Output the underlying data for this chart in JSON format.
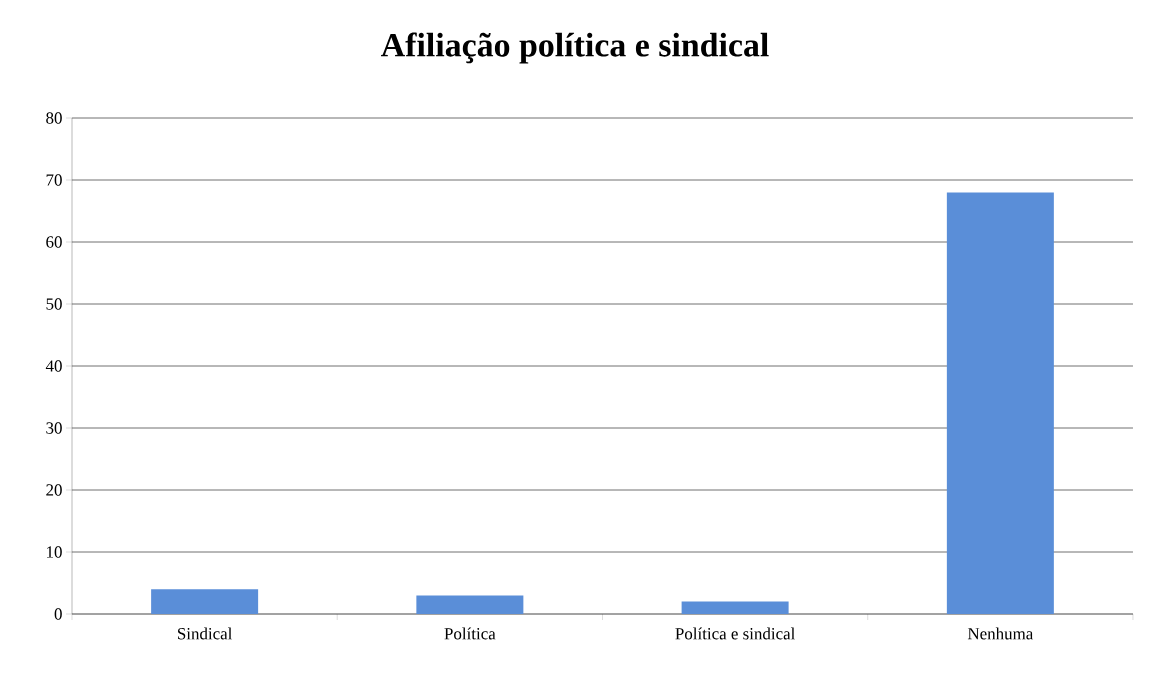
{
  "chart_data": {
    "type": "bar",
    "title": "Afiliação política e sindical",
    "categories": [
      "Sindical",
      "Política",
      "Política e sindical",
      "Nenhuma"
    ],
    "values": [
      4,
      3,
      2,
      68
    ],
    "color": "#5a8ed8",
    "ylim": [
      0,
      80
    ],
    "yticks": [
      0,
      10,
      20,
      30,
      40,
      50,
      60,
      70,
      80
    ],
    "grid": "y"
  }
}
